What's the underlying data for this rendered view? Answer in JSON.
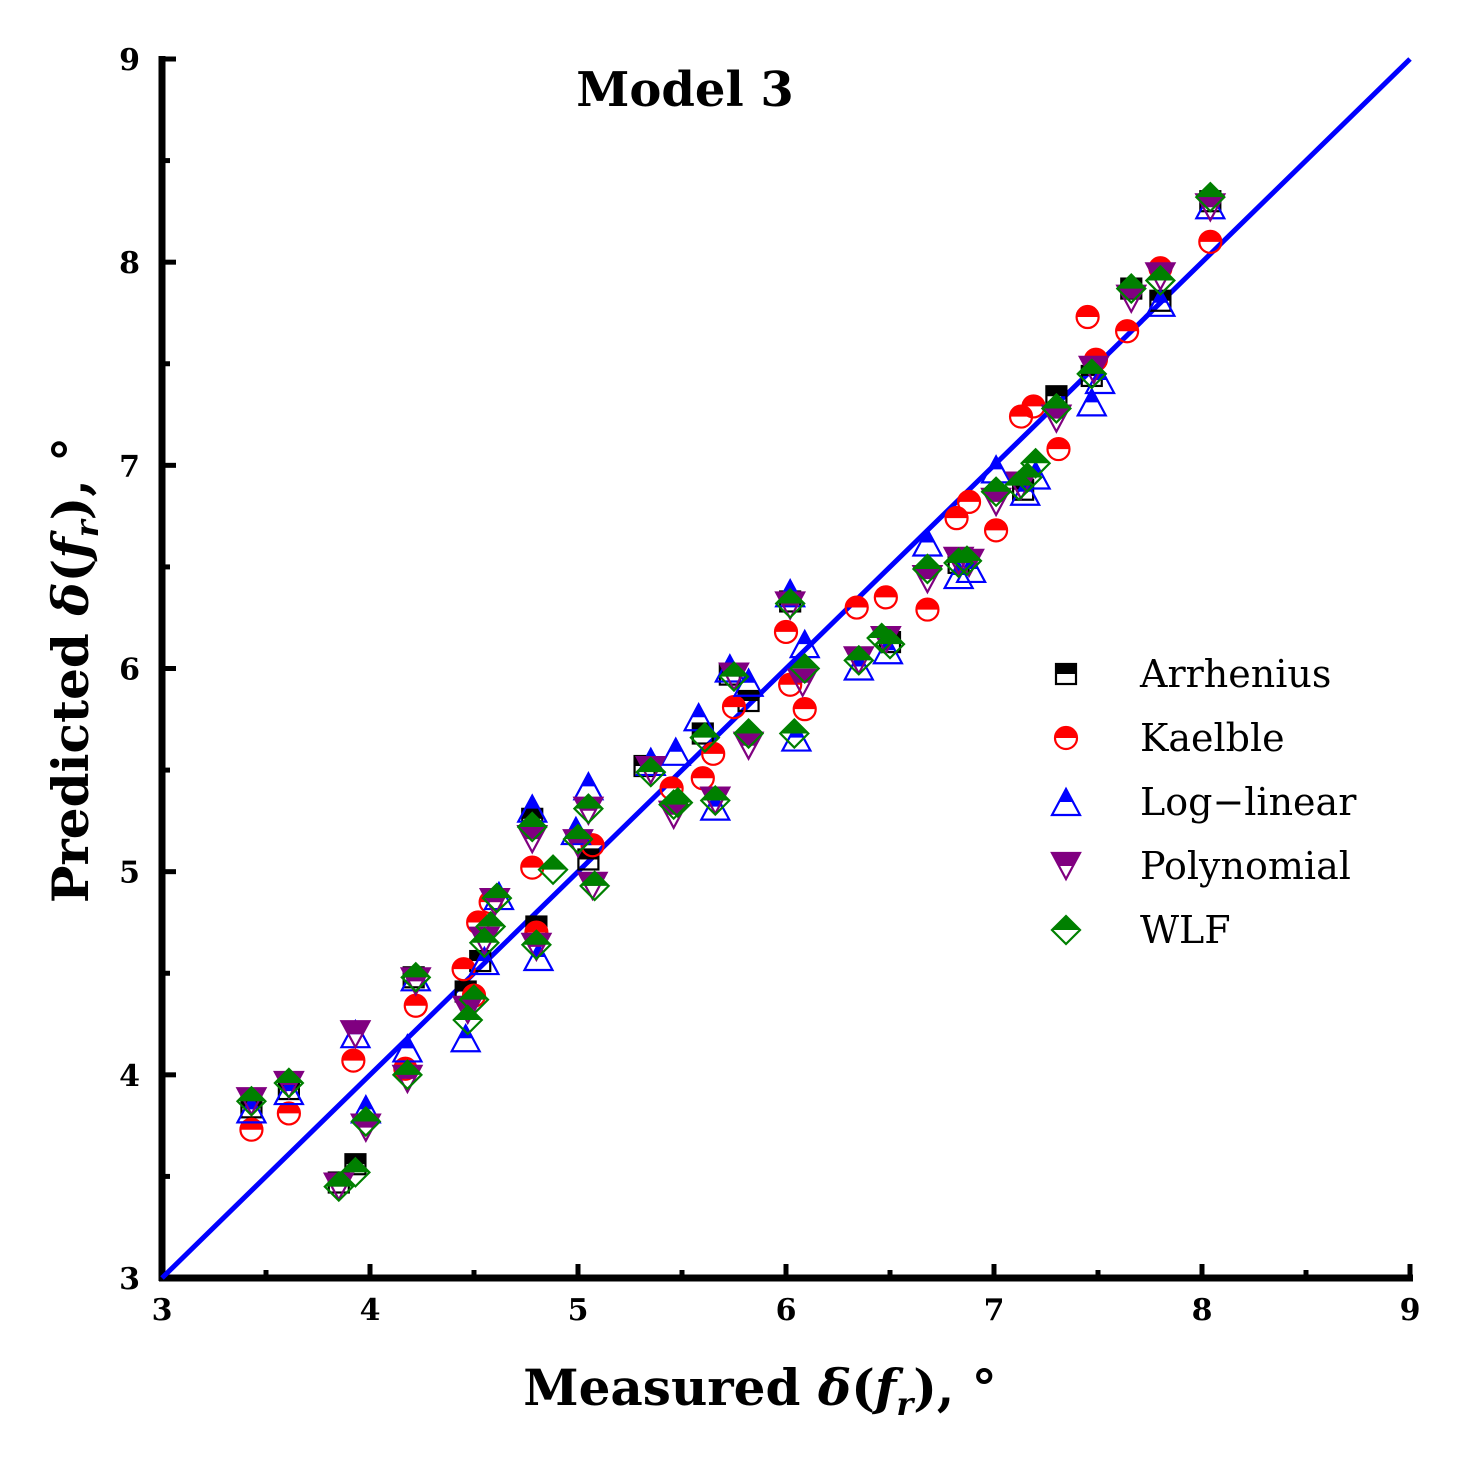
{
  "chart_data": {
    "type": "scatter",
    "title": "Model 3",
    "xlabel": "Measured δ(f_r),  °",
    "ylabel": "Predicted δ(f_r),  °",
    "xlabel_parts": {
      "prefix": "Measured ",
      "delta": "δ",
      "fn": "f",
      "sub": "r",
      "suffix": ",  °"
    },
    "ylabel_parts": {
      "prefix": "Predicted ",
      "delta": "δ",
      "fn": "f",
      "sub": "r",
      "suffix": ",  °"
    },
    "xlim": [
      3,
      9
    ],
    "ylim": [
      3,
      9
    ],
    "xticks": [
      3,
      4,
      5,
      6,
      7,
      8,
      9
    ],
    "yticks": [
      3,
      4,
      5,
      6,
      7,
      8,
      9
    ],
    "grid": false,
    "legend_position": "center-right",
    "reference_line": {
      "name": "1:1 line",
      "x": [
        3,
        9
      ],
      "y": [
        3,
        9
      ],
      "color": "#0000ff"
    },
    "series": [
      {
        "name": "Arrhenius",
        "marker": "square",
        "color": "#000000",
        "x": [
          3.43,
          3.61,
          3.85,
          3.93,
          4.21,
          4.46,
          4.53,
          4.78,
          4.8,
          5.05,
          5.32,
          5.6,
          5.73,
          5.82,
          6.02,
          6.5,
          6.83,
          7.14,
          7.3,
          7.47,
          7.66,
          7.8,
          8.04
        ],
        "y": [
          3.84,
          3.93,
          3.47,
          3.56,
          4.48,
          4.41,
          4.56,
          5.26,
          4.73,
          5.06,
          5.52,
          5.68,
          5.97,
          5.84,
          6.33,
          6.13,
          6.52,
          6.88,
          7.34,
          7.44,
          7.87,
          7.81,
          8.3
        ]
      },
      {
        "name": "Kaelble",
        "marker": "circle",
        "color": "#ff0000",
        "x": [
          3.43,
          3.61,
          3.92,
          4.17,
          4.22,
          4.45,
          4.5,
          4.52,
          4.58,
          4.78,
          4.8,
          5.07,
          5.45,
          5.6,
          5.65,
          5.75,
          6.0,
          6.02,
          6.09,
          6.34,
          6.48,
          6.68,
          6.82,
          6.88,
          7.01,
          7.13,
          7.19,
          7.31,
          7.45,
          7.49,
          7.64,
          7.8,
          8.04
        ],
        "y": [
          3.73,
          3.81,
          4.07,
          4.03,
          4.34,
          4.52,
          4.39,
          4.75,
          4.85,
          5.02,
          4.7,
          5.13,
          5.41,
          5.46,
          5.58,
          5.81,
          6.18,
          5.92,
          5.8,
          6.3,
          6.35,
          6.29,
          6.74,
          6.82,
          6.68,
          7.24,
          7.29,
          7.08,
          7.73,
          7.52,
          7.66,
          7.97,
          8.1
        ]
      },
      {
        "name": "Log−linear",
        "marker": "triangle-up",
        "color": "#0000ff",
        "x": [
          3.43,
          3.61,
          3.93,
          3.98,
          4.18,
          4.22,
          4.46,
          4.55,
          4.62,
          4.78,
          4.81,
          4.99,
          5.05,
          5.35,
          5.47,
          5.58,
          5.66,
          5.73,
          5.82,
          6.02,
          6.05,
          6.09,
          6.35,
          6.49,
          6.68,
          6.83,
          6.89,
          7.01,
          7.15,
          7.2,
          7.47,
          7.51,
          7.8,
          8.04
        ],
        "y": [
          3.83,
          3.92,
          4.2,
          3.83,
          4.13,
          4.48,
          4.18,
          4.56,
          4.88,
          5.31,
          4.58,
          5.2,
          5.42,
          5.54,
          5.59,
          5.76,
          5.32,
          6.0,
          5.93,
          6.37,
          5.66,
          6.12,
          6.01,
          6.09,
          6.62,
          6.46,
          6.49,
          6.98,
          6.87,
          6.95,
          7.31,
          7.42,
          7.8,
          8.28
        ]
      },
      {
        "name": "Polynomial",
        "marker": "triangle-down",
        "color": "#800080",
        "x": [
          3.43,
          3.61,
          3.85,
          3.93,
          3.98,
          4.18,
          4.22,
          4.47,
          4.55,
          4.6,
          4.78,
          4.8,
          5.0,
          5.05,
          5.07,
          5.35,
          5.46,
          5.66,
          5.75,
          5.82,
          6.02,
          6.08,
          6.35,
          6.48,
          6.68,
          6.83,
          6.88,
          7.01,
          7.13,
          7.3,
          7.48,
          7.66,
          7.8,
          8.04
        ],
        "y": [
          3.87,
          3.95,
          3.45,
          4.2,
          3.74,
          3.98,
          4.46,
          4.32,
          4.66,
          4.85,
          5.16,
          4.63,
          5.14,
          5.3,
          4.93,
          5.5,
          5.28,
          5.35,
          5.96,
          5.62,
          6.31,
          5.93,
          6.04,
          6.14,
          6.44,
          6.53,
          6.52,
          6.82,
          6.9,
          7.23,
          7.47,
          7.82,
          7.93,
          8.27
        ]
      },
      {
        "name": "WLF",
        "marker": "diamond",
        "color": "#008000",
        "x": [
          3.43,
          3.61,
          3.85,
          3.93,
          3.98,
          4.18,
          4.22,
          4.47,
          4.5,
          4.55,
          4.58,
          4.61,
          4.78,
          4.8,
          4.88,
          5.0,
          5.05,
          5.08,
          5.35,
          5.46,
          5.48,
          5.61,
          5.66,
          5.75,
          5.82,
          6.02,
          6.04,
          6.09,
          6.35,
          6.46,
          6.5,
          6.68,
          6.83,
          6.87,
          7.01,
          7.12,
          7.16,
          7.2,
          7.3,
          7.47,
          7.66,
          7.8,
          8.04
        ],
        "y": [
          3.87,
          3.96,
          3.45,
          3.52,
          3.77,
          4.0,
          4.48,
          4.27,
          4.37,
          4.65,
          4.73,
          4.87,
          5.22,
          4.64,
          5.01,
          5.16,
          5.31,
          4.93,
          5.49,
          5.33,
          5.34,
          5.66,
          5.35,
          5.96,
          5.68,
          6.32,
          5.68,
          6.0,
          6.04,
          6.15,
          6.12,
          6.49,
          6.52,
          6.53,
          6.87,
          6.9,
          6.94,
          7.01,
          7.28,
          7.45,
          7.87,
          7.91,
          8.32
        ]
      }
    ]
  }
}
